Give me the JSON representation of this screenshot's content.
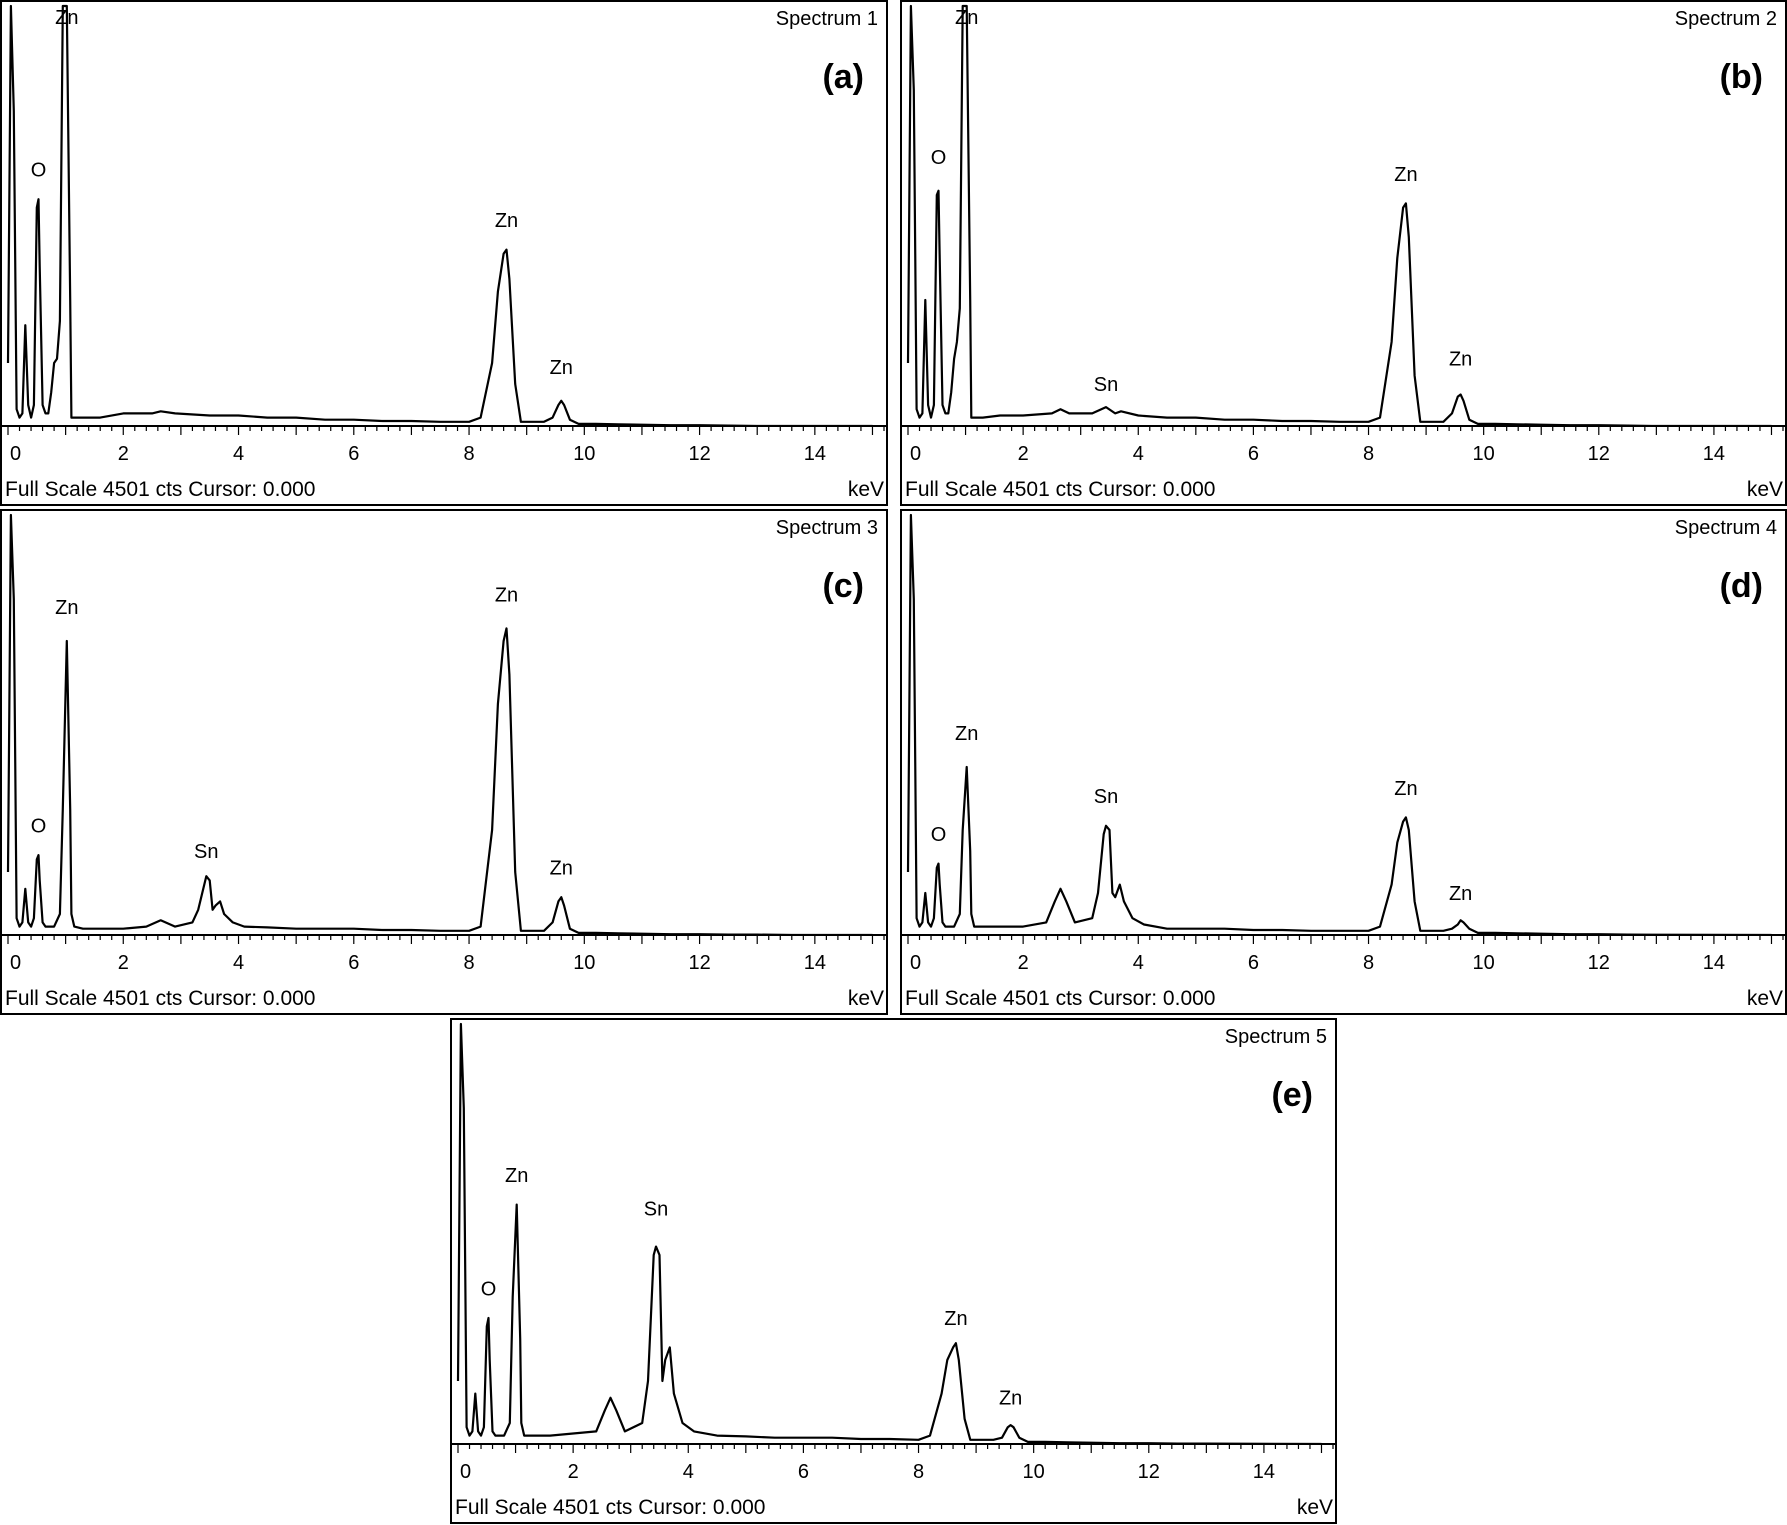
{
  "panels": [
    {
      "id": "a",
      "spectrum_title": "Spectrum 1",
      "panel_label": "(a)"
    },
    {
      "id": "b",
      "spectrum_title": "Spectrum 2",
      "panel_label": "(b)"
    },
    {
      "id": "c",
      "spectrum_title": "Spectrum 3",
      "panel_label": "(c)"
    },
    {
      "id": "d",
      "spectrum_title": "Spectrum 4",
      "panel_label": "(d)"
    },
    {
      "id": "e",
      "spectrum_title": "Spectrum 5",
      "panel_label": "(e)"
    }
  ],
  "footer_text": "Full Scale 4501 cts Cursor: 0.000",
  "x_unit": "keV",
  "chart_data": [
    {
      "type": "line",
      "title": "Spectrum 1",
      "xlabel": "keV",
      "ylabel": "",
      "xlim": [
        0,
        15.2
      ],
      "ylim": [
        0,
        1
      ],
      "x_ticks": [
        0,
        2,
        4,
        6,
        8,
        10,
        12,
        14
      ],
      "grid": false,
      "annotations": [
        {
          "label": "Zn",
          "x": 1.02,
          "y": 1.02
        },
        {
          "label": "O",
          "x": 0.53,
          "y": 0.57
        },
        {
          "label": "Zn",
          "x": 8.65,
          "y": 0.45
        },
        {
          "label": "Zn",
          "x": 9.6,
          "y": 0.1
        }
      ],
      "series": [
        {
          "x": [
            0.0,
            0.05,
            0.1,
            0.15,
            0.2,
            0.25,
            0.3,
            0.35,
            0.4,
            0.45,
            0.5,
            0.53,
            0.55,
            0.6,
            0.65,
            0.7,
            0.75,
            0.8,
            0.85,
            0.9,
            0.95,
            1.02,
            1.08,
            1.1,
            1.15,
            1.3,
            1.6,
            2.0,
            2.5,
            2.65,
            2.9,
            3.5,
            4.0,
            4.5,
            5.0,
            5.5,
            6.0,
            6.5,
            7.0,
            7.5,
            8.0,
            8.2,
            8.4,
            8.5,
            8.6,
            8.65,
            8.7,
            8.8,
            8.9,
            9.1,
            9.3,
            9.45,
            9.55,
            9.6,
            9.65,
            9.75,
            9.9,
            10.2,
            10.6,
            11.0,
            11.5,
            12.0,
            12.5,
            13.0,
            14.0,
            15.0
          ],
          "y": [
            0.15,
            1.0,
            0.75,
            0.04,
            0.02,
            0.03,
            0.24,
            0.05,
            0.02,
            0.05,
            0.52,
            0.54,
            0.38,
            0.05,
            0.03,
            0.03,
            0.08,
            0.15,
            0.16,
            0.25,
            1.0,
            1.0,
            0.3,
            0.02,
            0.02,
            0.02,
            0.02,
            0.03,
            0.03,
            0.035,
            0.03,
            0.025,
            0.025,
            0.02,
            0.02,
            0.015,
            0.015,
            0.012,
            0.012,
            0.01,
            0.01,
            0.02,
            0.15,
            0.32,
            0.41,
            0.42,
            0.35,
            0.1,
            0.01,
            0.01,
            0.01,
            0.02,
            0.05,
            0.06,
            0.05,
            0.015,
            0.005,
            0.005,
            0.004,
            0.003,
            0.002,
            0.002,
            0.001,
            0.0,
            0.0,
            0.0
          ]
        }
      ]
    },
    {
      "type": "line",
      "title": "Spectrum 2",
      "xlabel": "keV",
      "ylabel": "",
      "xlim": [
        0,
        15.2
      ],
      "ylim": [
        0,
        1
      ],
      "x_ticks": [
        0,
        2,
        4,
        6,
        8,
        10,
        12,
        14
      ],
      "grid": false,
      "annotations": [
        {
          "label": "Zn",
          "x": 1.02,
          "y": 1.02
        },
        {
          "label": "O",
          "x": 0.53,
          "y": 0.6
        },
        {
          "label": "Sn",
          "x": 3.44,
          "y": 0.06
        },
        {
          "label": "Zn",
          "x": 8.65,
          "y": 0.56
        },
        {
          "label": "Zn",
          "x": 9.6,
          "y": 0.12
        }
      ],
      "series": [
        {
          "x": [
            0.0,
            0.05,
            0.1,
            0.15,
            0.2,
            0.25,
            0.3,
            0.35,
            0.4,
            0.45,
            0.5,
            0.53,
            0.55,
            0.6,
            0.65,
            0.7,
            0.75,
            0.8,
            0.85,
            0.9,
            0.95,
            1.02,
            1.08,
            1.1,
            1.15,
            1.3,
            1.6,
            2.0,
            2.5,
            2.65,
            2.8,
            3.2,
            3.44,
            3.6,
            3.7,
            4.0,
            4.5,
            5.0,
            5.5,
            6.0,
            6.5,
            7.0,
            7.5,
            8.0,
            8.2,
            8.4,
            8.5,
            8.6,
            8.65,
            8.7,
            8.8,
            8.9,
            9.1,
            9.3,
            9.45,
            9.55,
            9.6,
            9.65,
            9.75,
            9.9,
            10.2,
            10.6,
            11.0,
            11.5,
            12.0,
            12.5,
            13.0,
            14.0,
            15.0
          ],
          "y": [
            0.15,
            1.0,
            0.8,
            0.04,
            0.02,
            0.03,
            0.3,
            0.05,
            0.02,
            0.05,
            0.55,
            0.56,
            0.4,
            0.05,
            0.03,
            0.03,
            0.08,
            0.16,
            0.2,
            0.28,
            1.0,
            1.0,
            0.3,
            0.02,
            0.02,
            0.02,
            0.025,
            0.025,
            0.03,
            0.04,
            0.03,
            0.03,
            0.045,
            0.03,
            0.035,
            0.025,
            0.02,
            0.02,
            0.015,
            0.015,
            0.012,
            0.012,
            0.01,
            0.01,
            0.02,
            0.2,
            0.4,
            0.52,
            0.53,
            0.45,
            0.12,
            0.01,
            0.01,
            0.01,
            0.03,
            0.07,
            0.075,
            0.06,
            0.015,
            0.005,
            0.005,
            0.004,
            0.003,
            0.002,
            0.002,
            0.001,
            0.0,
            0.0,
            0.0
          ]
        }
      ]
    },
    {
      "type": "line",
      "title": "Spectrum 3",
      "xlabel": "keV",
      "ylabel": "",
      "xlim": [
        0,
        15.2
      ],
      "ylim": [
        0,
        1
      ],
      "x_ticks": [
        0,
        2,
        4,
        6,
        8,
        10,
        12,
        14
      ],
      "grid": false,
      "annotations": [
        {
          "label": "Zn",
          "x": 1.02,
          "y": 0.74
        },
        {
          "label": "O",
          "x": 0.53,
          "y": 0.22
        },
        {
          "label": "Sn",
          "x": 3.44,
          "y": 0.16
        },
        {
          "label": "Zn",
          "x": 8.65,
          "y": 0.77
        },
        {
          "label": "Zn",
          "x": 9.6,
          "y": 0.12
        }
      ],
      "series": [
        {
          "x": [
            0.0,
            0.05,
            0.1,
            0.15,
            0.2,
            0.25,
            0.3,
            0.35,
            0.4,
            0.45,
            0.5,
            0.53,
            0.55,
            0.6,
            0.65,
            0.7,
            0.8,
            0.9,
            0.95,
            1.02,
            1.08,
            1.1,
            1.15,
            1.3,
            1.6,
            2.0,
            2.4,
            2.65,
            2.9,
            3.2,
            3.3,
            3.44,
            3.5,
            3.55,
            3.6,
            3.68,
            3.75,
            3.9,
            4.1,
            4.5,
            5.0,
            5.5,
            6.0,
            6.5,
            7.0,
            7.5,
            8.0,
            8.2,
            8.4,
            8.5,
            8.6,
            8.65,
            8.7,
            8.8,
            8.9,
            9.1,
            9.3,
            9.45,
            9.55,
            9.6,
            9.65,
            9.75,
            9.9,
            10.2,
            10.6,
            11.0,
            11.5,
            12.0,
            12.5,
            13.0,
            13.6,
            14.0,
            15.0
          ],
          "y": [
            0.15,
            1.0,
            0.8,
            0.04,
            0.02,
            0.03,
            0.11,
            0.03,
            0.02,
            0.04,
            0.18,
            0.19,
            0.13,
            0.03,
            0.02,
            0.02,
            0.02,
            0.05,
            0.3,
            0.7,
            0.3,
            0.05,
            0.02,
            0.015,
            0.015,
            0.015,
            0.02,
            0.035,
            0.02,
            0.03,
            0.06,
            0.14,
            0.13,
            0.06,
            0.07,
            0.08,
            0.05,
            0.03,
            0.02,
            0.018,
            0.015,
            0.015,
            0.015,
            0.012,
            0.012,
            0.01,
            0.01,
            0.02,
            0.25,
            0.55,
            0.7,
            0.73,
            0.62,
            0.15,
            0.01,
            0.01,
            0.01,
            0.03,
            0.08,
            0.09,
            0.07,
            0.015,
            0.005,
            0.005,
            0.004,
            0.003,
            0.002,
            0.002,
            0.001,
            0.001,
            0.0,
            0.0,
            0.0
          ]
        }
      ]
    },
    {
      "type": "line",
      "title": "Spectrum 4",
      "xlabel": "keV",
      "ylabel": "",
      "xlim": [
        0,
        15.2
      ],
      "ylim": [
        0,
        1
      ],
      "x_ticks": [
        0,
        2,
        4,
        6,
        8,
        10,
        12,
        14
      ],
      "grid": false,
      "annotations": [
        {
          "label": "Zn",
          "x": 1.02,
          "y": 0.44
        },
        {
          "label": "O",
          "x": 0.53,
          "y": 0.2
        },
        {
          "label": "Sn",
          "x": 3.44,
          "y": 0.29
        },
        {
          "label": "Zn",
          "x": 8.65,
          "y": 0.31
        },
        {
          "label": "Zn",
          "x": 9.6,
          "y": 0.06
        }
      ],
      "series": [
        {
          "x": [
            0.0,
            0.05,
            0.1,
            0.15,
            0.2,
            0.25,
            0.3,
            0.35,
            0.4,
            0.45,
            0.5,
            0.53,
            0.55,
            0.6,
            0.65,
            0.7,
            0.8,
            0.9,
            0.95,
            1.02,
            1.08,
            1.1,
            1.15,
            1.3,
            1.6,
            2.0,
            2.4,
            2.55,
            2.65,
            2.75,
            2.9,
            3.2,
            3.3,
            3.4,
            3.44,
            3.5,
            3.55,
            3.6,
            3.68,
            3.75,
            3.9,
            4.1,
            4.5,
            5.0,
            5.5,
            6.0,
            6.5,
            7.0,
            7.5,
            8.0,
            8.2,
            8.4,
            8.5,
            8.6,
            8.65,
            8.7,
            8.8,
            8.9,
            9.1,
            9.3,
            9.45,
            9.55,
            9.6,
            9.65,
            9.75,
            9.9,
            10.2,
            10.6,
            11.0,
            11.5,
            12.0,
            12.5,
            15.0
          ],
          "y": [
            0.15,
            1.0,
            0.8,
            0.04,
            0.02,
            0.03,
            0.1,
            0.03,
            0.02,
            0.04,
            0.16,
            0.17,
            0.12,
            0.03,
            0.02,
            0.02,
            0.02,
            0.05,
            0.25,
            0.4,
            0.2,
            0.05,
            0.02,
            0.02,
            0.02,
            0.02,
            0.03,
            0.08,
            0.11,
            0.08,
            0.03,
            0.04,
            0.1,
            0.24,
            0.26,
            0.25,
            0.1,
            0.09,
            0.12,
            0.08,
            0.04,
            0.025,
            0.015,
            0.015,
            0.015,
            0.012,
            0.012,
            0.01,
            0.01,
            0.01,
            0.02,
            0.12,
            0.22,
            0.27,
            0.28,
            0.25,
            0.08,
            0.01,
            0.01,
            0.01,
            0.015,
            0.025,
            0.035,
            0.03,
            0.015,
            0.005,
            0.005,
            0.004,
            0.003,
            0.002,
            0.002,
            0.001,
            0.0
          ]
        }
      ]
    },
    {
      "type": "line",
      "title": "Spectrum 5",
      "xlabel": "keV",
      "ylabel": "",
      "xlim": [
        0,
        15.2
      ],
      "ylim": [
        0,
        1
      ],
      "x_ticks": [
        0,
        2,
        4,
        6,
        8,
        10,
        12,
        14
      ],
      "grid": false,
      "annotations": [
        {
          "label": "Zn",
          "x": 1.02,
          "y": 0.6
        },
        {
          "label": "O",
          "x": 0.53,
          "y": 0.33
        },
        {
          "label": "Sn",
          "x": 3.44,
          "y": 0.52
        },
        {
          "label": "Zn",
          "x": 8.65,
          "y": 0.26
        },
        {
          "label": "Zn",
          "x": 9.6,
          "y": 0.07
        }
      ],
      "series": [
        {
          "x": [
            0.0,
            0.05,
            0.1,
            0.15,
            0.2,
            0.25,
            0.3,
            0.35,
            0.4,
            0.45,
            0.5,
            0.53,
            0.55,
            0.6,
            0.65,
            0.7,
            0.8,
            0.9,
            0.95,
            1.02,
            1.08,
            1.1,
            1.15,
            1.3,
            1.6,
            2.0,
            2.4,
            2.55,
            2.65,
            2.75,
            2.9,
            3.2,
            3.3,
            3.4,
            3.44,
            3.5,
            3.55,
            3.6,
            3.68,
            3.75,
            3.9,
            4.1,
            4.5,
            5.0,
            5.5,
            6.0,
            6.5,
            7.0,
            7.5,
            8.0,
            8.2,
            8.4,
            8.5,
            8.6,
            8.65,
            8.7,
            8.8,
            8.9,
            9.1,
            9.3,
            9.45,
            9.55,
            9.6,
            9.65,
            9.75,
            9.9,
            10.2,
            10.6,
            11.0,
            11.5,
            12.0,
            12.5,
            13.0,
            15.0
          ],
          "y": [
            0.15,
            1.0,
            0.8,
            0.04,
            0.02,
            0.03,
            0.12,
            0.03,
            0.02,
            0.04,
            0.28,
            0.3,
            0.2,
            0.03,
            0.02,
            0.02,
            0.02,
            0.05,
            0.35,
            0.57,
            0.25,
            0.05,
            0.02,
            0.02,
            0.02,
            0.025,
            0.03,
            0.08,
            0.11,
            0.08,
            0.03,
            0.05,
            0.15,
            0.45,
            0.47,
            0.45,
            0.15,
            0.2,
            0.23,
            0.12,
            0.05,
            0.03,
            0.02,
            0.018,
            0.015,
            0.015,
            0.015,
            0.012,
            0.012,
            0.01,
            0.02,
            0.12,
            0.2,
            0.23,
            0.24,
            0.2,
            0.06,
            0.01,
            0.01,
            0.01,
            0.015,
            0.04,
            0.045,
            0.04,
            0.015,
            0.005,
            0.005,
            0.004,
            0.003,
            0.002,
            0.002,
            0.001,
            0.001,
            0.0
          ]
        }
      ]
    }
  ]
}
